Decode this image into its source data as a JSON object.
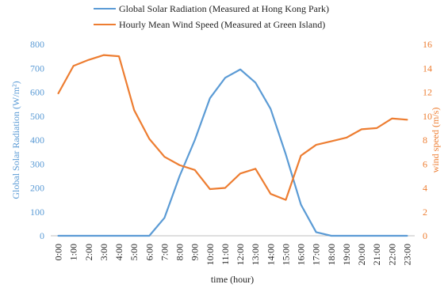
{
  "chart_data": {
    "type": "line",
    "xlabel": "time (hour)",
    "categories": [
      "0:00",
      "1:00",
      "2:00",
      "3:00",
      "4:00",
      "5:00",
      "6:00",
      "7:00",
      "8:00",
      "9:00",
      "10:00",
      "11:00",
      "12:00",
      "13:00",
      "14:00",
      "15:00",
      "16:00",
      "17:00",
      "18:00",
      "19:00",
      "20:00",
      "21:00",
      "22:00",
      "23:00"
    ],
    "y_left": {
      "label": "Global Solar Radiation (W/m²)",
      "range": [
        0,
        800
      ],
      "ticks": [
        0,
        100,
        200,
        300,
        400,
        500,
        600,
        700,
        800
      ]
    },
    "y_right": {
      "label": "wind speed (m/s)",
      "range": [
        0,
        16
      ],
      "ticks": [
        0,
        2,
        4,
        6,
        8,
        10,
        12,
        14,
        16
      ]
    },
    "series": [
      {
        "name": "Global Solar Radiation (Measured at Hong Kong Park)",
        "axis": "left",
        "color": "#5b9bd5",
        "values": [
          0,
          0,
          0,
          0,
          0,
          0,
          0,
          75,
          250,
          400,
          575,
          660,
          695,
          640,
          530,
          340,
          130,
          15,
          0,
          0,
          0,
          0,
          0,
          0
        ]
      },
      {
        "name": "Hourly Mean Wind Speed (Measured at Green Island)",
        "axis": "right",
        "color": "#ed7d31",
        "values": [
          11.9,
          14.2,
          14.7,
          15.1,
          15.0,
          10.5,
          8.1,
          6.6,
          5.9,
          5.5,
          3.9,
          4.0,
          5.2,
          5.6,
          3.5,
          3.0,
          6.7,
          7.6,
          7.9,
          8.2,
          8.9,
          9.0,
          9.8,
          9.7
        ]
      }
    ],
    "legend_position": "top",
    "grid": false
  }
}
